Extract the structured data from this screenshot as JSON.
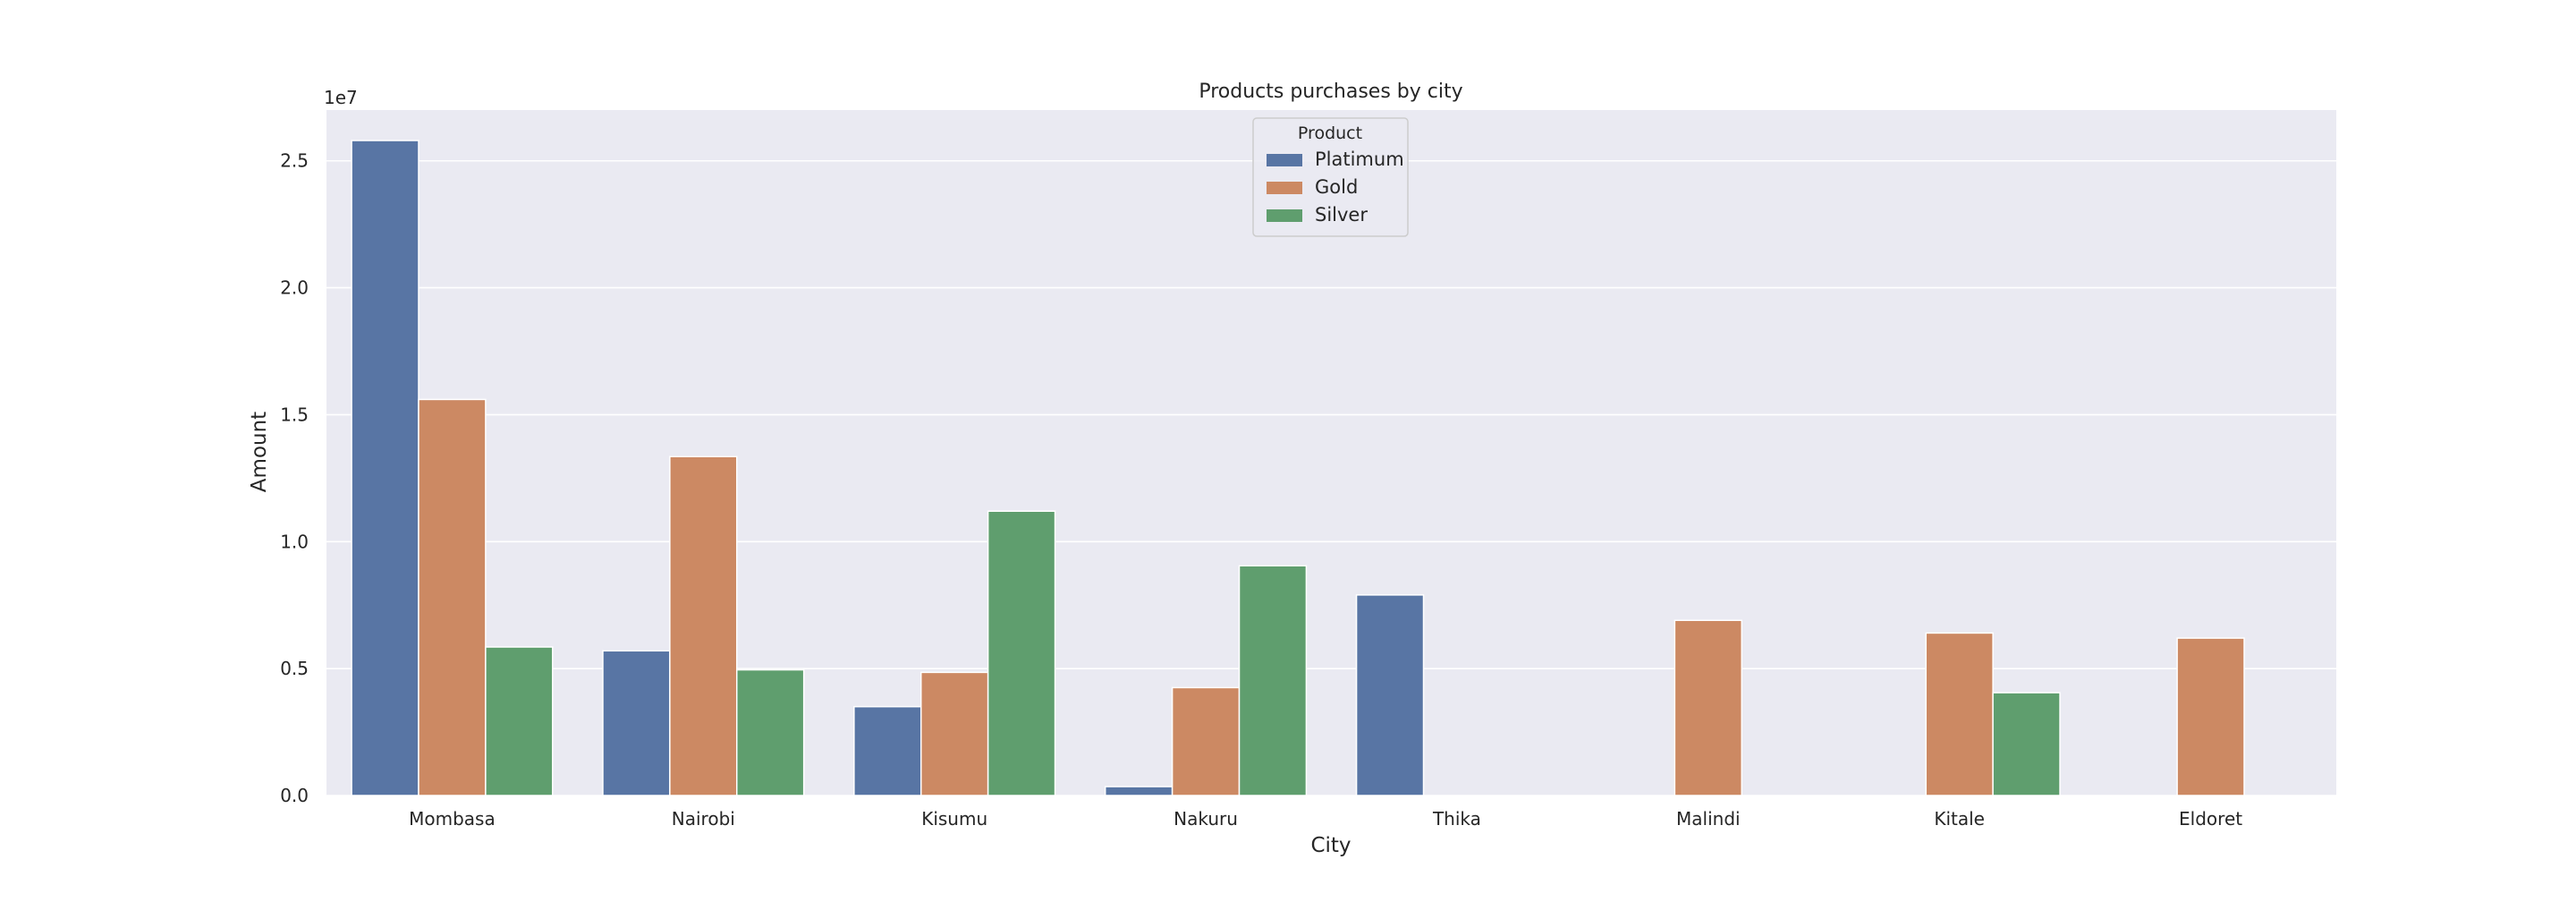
{
  "chart_data": {
    "type": "bar",
    "title": "Products purchases by city",
    "xlabel": "City",
    "ylabel": "Amount",
    "y_offset_label": "1e7",
    "ylim": [
      0,
      27000000
    ],
    "y_ticks": [
      0,
      5000000,
      10000000,
      15000000,
      20000000,
      25000000
    ],
    "y_tick_labels": [
      "0.0",
      "0.5",
      "1.0",
      "1.5",
      "2.0",
      "2.5"
    ],
    "grid": true,
    "legend": {
      "title": "Product",
      "placement": "top-center"
    },
    "categories": [
      "Mombasa",
      "Nairobi",
      "Kisumu",
      "Nakuru",
      "Thika",
      "Malindi",
      "Kitale",
      "Eldoret"
    ],
    "series": [
      {
        "name": "Platimum",
        "color": "#5875a4",
        "values": [
          25800000,
          5700000,
          3500000,
          350000,
          7900000,
          0,
          0,
          0
        ]
      },
      {
        "name": "Gold",
        "color": "#cc8963",
        "values": [
          15600000,
          13350000,
          4850000,
          4250000,
          0,
          6900000,
          6400000,
          6200000
        ]
      },
      {
        "name": "Silver",
        "color": "#5f9e6e",
        "values": [
          5850000,
          4950000,
          11200000,
          9050000,
          0,
          0,
          4050000,
          0
        ]
      }
    ]
  }
}
